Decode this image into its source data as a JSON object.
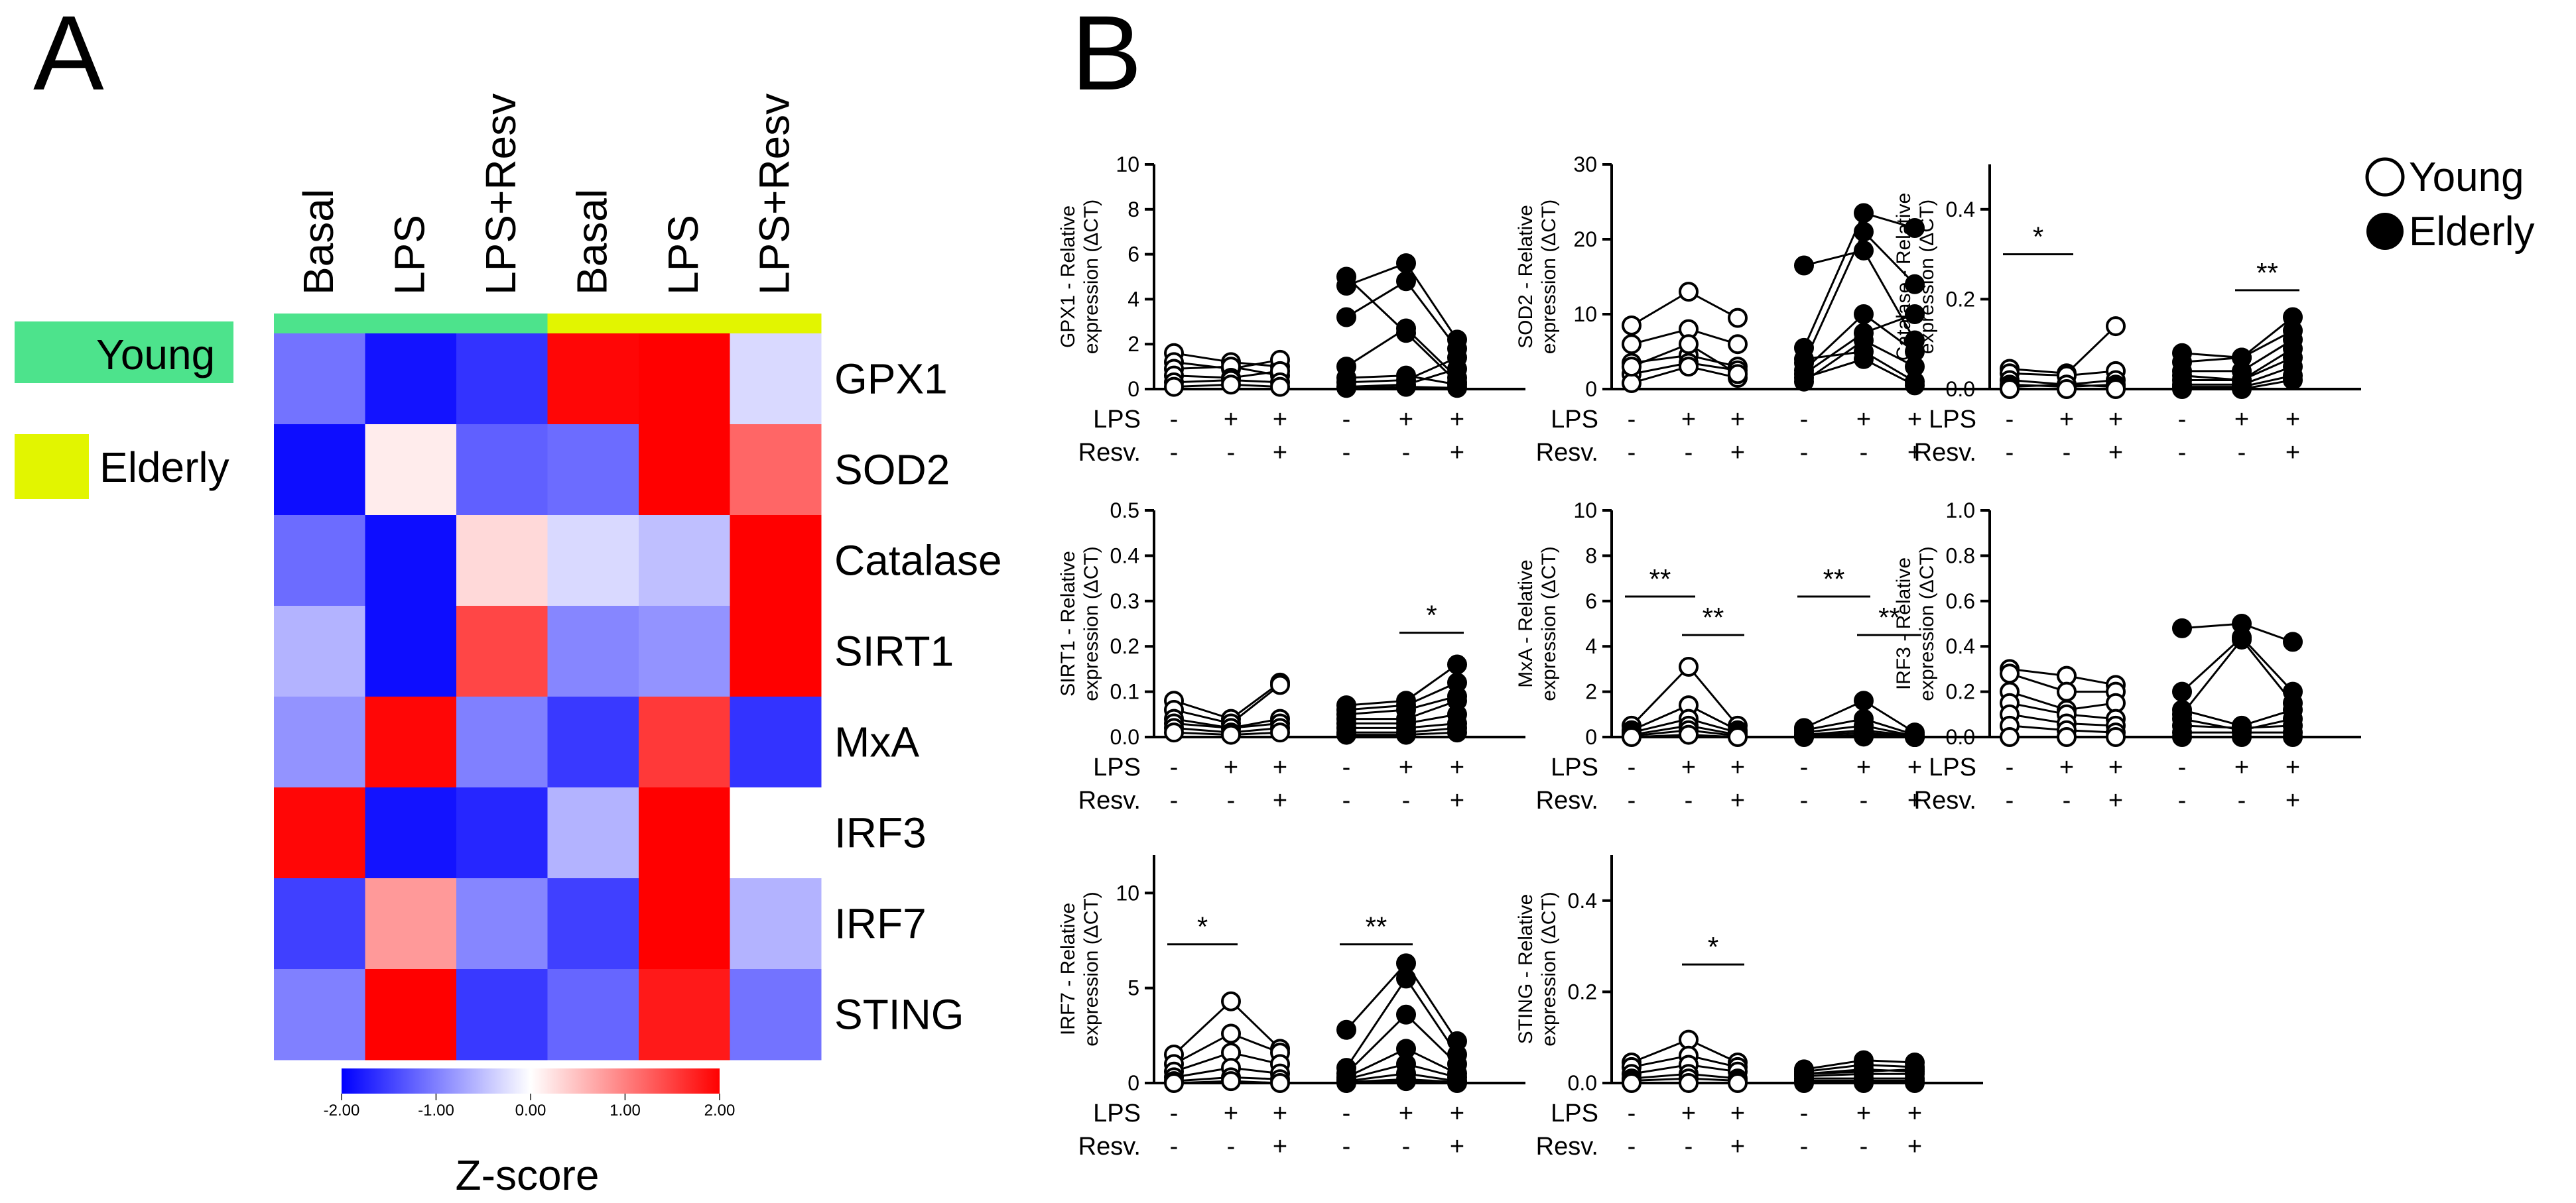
{
  "figure": {
    "panel_a_letter": "A",
    "panel_b_letter": "B"
  },
  "heatmap": {
    "columns": [
      "Basal",
      "LPS",
      "LPS+Resv",
      "Basal",
      "LPS",
      "LPS+Resv"
    ],
    "column_groups": [
      "young",
      "young",
      "young",
      "elderly",
      "elderly",
      "elderly"
    ],
    "genes": [
      "GPX1",
      "SOD2",
      "Catalase",
      "SIRT1",
      "MxA",
      "IRF3",
      "IRF7",
      "STING"
    ],
    "z": [
      [
        -1.1,
        -1.85,
        -1.6,
        1.95,
        2.0,
        -0.3
      ],
      [
        -1.9,
        0.15,
        -1.25,
        -1.15,
        2.0,
        1.2
      ],
      [
        -1.15,
        -1.9,
        0.3,
        -0.3,
        -0.5,
        2.0
      ],
      [
        -0.6,
        -1.9,
        1.45,
        -0.95,
        -0.85,
        2.0
      ],
      [
        -0.85,
        1.95,
        -1.0,
        -1.55,
        1.55,
        -1.6
      ],
      [
        1.95,
        -1.85,
        -1.7,
        -0.6,
        2.0,
        0.0
      ],
      [
        -1.5,
        0.8,
        -0.95,
        -1.5,
        2.0,
        -0.6
      ],
      [
        -1.0,
        2.0,
        -1.55,
        -1.2,
        1.8,
        -1.1
      ]
    ],
    "legend": {
      "young_label": "Young",
      "elderly_label": "Elderly",
      "young_color": "#4de38c",
      "elderly_color": "#e2f500"
    },
    "colorbar": {
      "ticks": [
        "-2.00",
        "-1.00",
        "0.00",
        "1.00",
        "2.00"
      ],
      "title": "Z-score",
      "low_color": "#0000ff",
      "mid_color": "#ffffff",
      "high_color": "#ff0000"
    }
  },
  "panel_b": {
    "legend": {
      "young_label": "Young",
      "elderly_label": "Elderly"
    },
    "row_labels": {
      "lps": "LPS",
      "resv": "Resv."
    },
    "conditions": [
      {
        "lps": "-",
        "resv": "-"
      },
      {
        "lps": "+",
        "resv": "-"
      },
      {
        "lps": "+",
        "resv": "+"
      },
      {
        "lps": "-",
        "resv": "-"
      },
      {
        "lps": "+",
        "resv": "-"
      },
      {
        "lps": "+",
        "resv": "+"
      }
    ]
  },
  "chart_data": [
    {
      "type": "scatter",
      "title": "",
      "ylabel_line1": "GPX1 - Relative",
      "ylabel_line2": "expression (ΔCT)",
      "ylim": [
        0,
        10
      ],
      "yticks": [
        0,
        2,
        4,
        6,
        8,
        10
      ],
      "groups": [
        {
          "name": "Young",
          "lines": [
            [
              1.6,
              1.2,
              1.0
            ],
            [
              1.2,
              0.9,
              1.3
            ],
            [
              0.9,
              1.0,
              0.6
            ],
            [
              0.6,
              0.5,
              0.8
            ],
            [
              0.3,
              0.4,
              0.3
            ],
            [
              0.1,
              0.2,
              0.1
            ]
          ]
        },
        {
          "name": "Elderly",
          "lines": [
            [
              5.0,
              2.5,
              0.3
            ],
            [
              4.6,
              5.6,
              2.2
            ],
            [
              3.2,
              4.8,
              1.8
            ],
            [
              1.0,
              2.7,
              0.5
            ],
            [
              0.5,
              0.6,
              0.2
            ],
            [
              0.3,
              0.4,
              1.4
            ],
            [
              0.1,
              0.2,
              0.9
            ],
            [
              0.05,
              0.1,
              0.05
            ]
          ]
        }
      ],
      "significance": []
    },
    {
      "type": "scatter",
      "title": "",
      "ylabel_line1": "SOD2 - Relative",
      "ylabel_line2": "expression (ΔCT)",
      "ylim": [
        0,
        30
      ],
      "yticks": [
        0,
        10,
        20,
        30
      ],
      "groups": [
        {
          "name": "Young",
          "lines": [
            [
              8.5,
              13.0,
              9.5
            ],
            [
              6.0,
              8.0,
              6.0
            ],
            [
              3.5,
              4.5,
              3.0
            ],
            [
              2.0,
              3.5,
              2.5
            ],
            [
              0.8,
              3.0,
              1.5
            ],
            [
              3.0,
              6.0,
              2.0
            ]
          ]
        },
        {
          "name": "Elderly",
          "lines": [
            [
              16.5,
              18.5,
              6.5
            ],
            [
              5.5,
              23.5,
              21.5
            ],
            [
              3.5,
              21.0,
              14.0
            ],
            [
              2.0,
              7.5,
              10.0
            ],
            [
              1.0,
              6.5,
              3.0
            ],
            [
              4.0,
              5.0,
              1.0
            ],
            [
              1.5,
              4.0,
              0.5
            ],
            [
              2.5,
              10.0,
              5.0
            ]
          ]
        }
      ],
      "significance": []
    },
    {
      "type": "scatter",
      "title": "",
      "ylabel_line1": "Catalase - Relative",
      "ylabel_line2": "expression (ΔCT)",
      "ylim": [
        0,
        0.5
      ],
      "yticks": [
        0.0,
        0.2,
        0.4
      ],
      "groups": [
        {
          "name": "Young",
          "lines": [
            [
              0.045,
              0.035,
              0.14
            ],
            [
              0.035,
              0.03,
              0.04
            ],
            [
              0.02,
              0.01,
              0.02
            ],
            [
              0.01,
              0.005,
              0.01
            ],
            [
              0.005,
              0.01,
              0.005
            ],
            [
              0.0,
              0.0,
              0.0
            ]
          ]
        },
        {
          "name": "Elderly",
          "lines": [
            [
              0.08,
              0.07,
              0.16
            ],
            [
              0.06,
              0.07,
              0.13
            ],
            [
              0.04,
              0.04,
              0.11
            ],
            [
              0.03,
              0.02,
              0.09
            ],
            [
              0.02,
              0.02,
              0.07
            ],
            [
              0.01,
              0.01,
              0.05
            ],
            [
              0.0,
              0.0,
              0.02
            ],
            [
              0.005,
              0.005,
              0.03
            ]
          ]
        }
      ],
      "significance": [
        {
          "label": "*",
          "from": 0,
          "to": 1,
          "y": 0.3
        },
        {
          "label": "**",
          "from": 4,
          "to": 5,
          "y": 0.22
        }
      ]
    },
    {
      "type": "scatter",
      "title": "",
      "ylabel_line1": "SIRT1 - Relative",
      "ylabel_line2": "expression (ΔCT)",
      "ylim": [
        0,
        0.5
      ],
      "yticks": [
        0.0,
        0.1,
        0.2,
        0.3,
        0.4,
        0.5
      ],
      "groups": [
        {
          "name": "Young",
          "lines": [
            [
              0.08,
              0.04,
              0.12
            ],
            [
              0.06,
              0.03,
              0.115
            ],
            [
              0.04,
              0.02,
              0.04
            ],
            [
              0.03,
              0.02,
              0.03
            ],
            [
              0.02,
              0.01,
              0.02
            ],
            [
              0.01,
              0.005,
              0.01
            ]
          ]
        },
        {
          "name": "Elderly",
          "lines": [
            [
              0.07,
              0.08,
              0.16
            ],
            [
              0.06,
              0.07,
              0.12
            ],
            [
              0.05,
              0.06,
              0.09
            ],
            [
              0.04,
              0.04,
              0.08
            ],
            [
              0.03,
              0.03,
              0.05
            ],
            [
              0.02,
              0.02,
              0.03
            ],
            [
              0.01,
              0.01,
              0.02
            ],
            [
              0.005,
              0.005,
              0.01
            ]
          ]
        }
      ],
      "significance": [
        {
          "label": "*",
          "from": 4,
          "to": 5,
          "y": 0.23
        }
      ]
    },
    {
      "type": "scatter",
      "title": "",
      "ylabel_line1": "MxA - Relative",
      "ylabel_line2": "expression (ΔCT)",
      "ylim": [
        0,
        10
      ],
      "yticks": [
        0,
        2,
        4,
        6,
        8,
        10
      ],
      "groups": [
        {
          "name": "Young",
          "lines": [
            [
              0.5,
              3.1,
              0.5
            ],
            [
              0.3,
              1.4,
              0.3
            ],
            [
              0.2,
              0.8,
              0.2
            ],
            [
              0.1,
              0.5,
              0.1
            ],
            [
              0.05,
              0.3,
              0.05
            ],
            [
              0.0,
              0.1,
              0.0
            ]
          ]
        },
        {
          "name": "Elderly",
          "lines": [
            [
              0.4,
              1.6,
              0.2
            ],
            [
              0.3,
              0.8,
              0.1
            ],
            [
              0.2,
              0.5,
              0.05
            ],
            [
              0.1,
              0.3,
              0.05
            ],
            [
              0.05,
              0.2,
              0.0
            ],
            [
              0.0,
              0.1,
              0.0
            ],
            [
              0.02,
              0.05,
              0.0
            ],
            [
              0.01,
              0.02,
              0.0
            ]
          ]
        }
      ],
      "significance": [
        {
          "label": "**",
          "from": 0,
          "to": 1,
          "y": 6.2
        },
        {
          "label": "**",
          "from": 1,
          "to": 2,
          "y": 4.5
        },
        {
          "label": "**",
          "from": 3,
          "to": 4,
          "y": 6.2
        },
        {
          "label": "**",
          "from": 4,
          "to": 5,
          "y": 4.5
        }
      ]
    },
    {
      "type": "scatter",
      "title": "",
      "ylabel_line1": "IRF3 - Relative",
      "ylabel_line2": "expression (ΔCT)",
      "ylim": [
        0,
        1.0
      ],
      "yticks": [
        0.0,
        0.2,
        0.4,
        0.6,
        0.8,
        1.0
      ],
      "groups": [
        {
          "name": "Young",
          "lines": [
            [
              0.3,
              0.27,
              0.23
            ],
            [
              0.28,
              0.2,
              0.2
            ],
            [
              0.2,
              0.12,
              0.15
            ],
            [
              0.15,
              0.1,
              0.08
            ],
            [
              0.1,
              0.06,
              0.05
            ],
            [
              0.05,
              0.03,
              0.02
            ],
            [
              0.0,
              0.0,
              0.0
            ]
          ]
        },
        {
          "name": "Elderly",
          "lines": [
            [
              0.48,
              0.5,
              0.42
            ],
            [
              0.2,
              0.44,
              0.2
            ],
            [
              0.12,
              0.05,
              0.12
            ],
            [
              0.08,
              0.03,
              0.08
            ],
            [
              0.05,
              0.04,
              0.05
            ],
            [
              0.02,
              0.02,
              0.02
            ],
            [
              0.0,
              0.0,
              0.0
            ],
            [
              0.1,
              0.43,
              0.15
            ]
          ]
        }
      ],
      "significance": []
    },
    {
      "type": "scatter",
      "title": "",
      "ylabel_line1": "IRF7 - Relative",
      "ylabel_line2": "expression (ΔCT)",
      "ylim": [
        0,
        12
      ],
      "yticks": [
        0,
        5,
        10
      ],
      "groups": [
        {
          "name": "Young",
          "lines": [
            [
              1.5,
              4.3,
              1.8
            ],
            [
              1.0,
              2.6,
              1.6
            ],
            [
              0.6,
              1.6,
              1.0
            ],
            [
              0.3,
              0.8,
              0.5
            ],
            [
              0.1,
              0.3,
              0.2
            ],
            [
              0.0,
              0.1,
              0.0
            ]
          ]
        },
        {
          "name": "Elderly",
          "lines": [
            [
              2.8,
              6.3,
              2.2
            ],
            [
              0.8,
              5.5,
              1.5
            ],
            [
              0.5,
              3.6,
              1.0
            ],
            [
              0.3,
              1.8,
              0.5
            ],
            [
              0.2,
              1.0,
              0.3
            ],
            [
              0.1,
              0.5,
              0.1
            ],
            [
              0.05,
              0.2,
              0.05
            ],
            [
              0.0,
              0.1,
              0.0
            ]
          ]
        }
      ],
      "significance": [
        {
          "label": "*",
          "from": 0,
          "to": 1,
          "y": 7.3
        },
        {
          "label": "**",
          "from": 3,
          "to": 4,
          "y": 7.3
        }
      ]
    },
    {
      "type": "scatter",
      "title": "",
      "ylabel_line1": "STING - Relative",
      "ylabel_line2": "expression (ΔCT)",
      "ylim": [
        0,
        0.5
      ],
      "yticks": [
        0.0,
        0.2,
        0.4
      ],
      "groups": [
        {
          "name": "Young",
          "lines": [
            [
              0.045,
              0.095,
              0.045
            ],
            [
              0.035,
              0.06,
              0.035
            ],
            [
              0.02,
              0.04,
              0.025
            ],
            [
              0.01,
              0.02,
              0.01
            ],
            [
              0.005,
              0.01,
              0.005
            ],
            [
              0.0,
              0.0,
              0.0
            ]
          ]
        },
        {
          "name": "Elderly",
          "lines": [
            [
              0.03,
              0.05,
              0.045
            ],
            [
              0.025,
              0.04,
              0.035
            ],
            [
              0.02,
              0.03,
              0.025
            ],
            [
              0.015,
              0.02,
              0.02
            ],
            [
              0.01,
              0.01,
              0.01
            ],
            [
              0.005,
              0.005,
              0.005
            ],
            [
              0.0,
              0.0,
              0.0
            ],
            [
              0.02,
              0.025,
              0.03
            ]
          ]
        }
      ],
      "significance": [
        {
          "label": "*",
          "from": 1,
          "to": 2,
          "y": 0.26
        }
      ]
    }
  ]
}
